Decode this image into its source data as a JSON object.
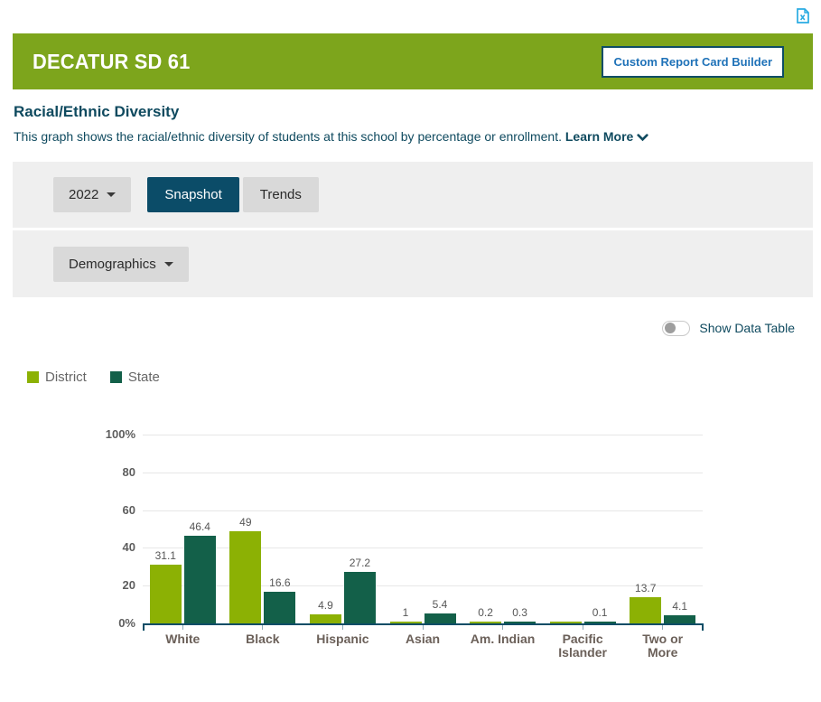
{
  "topbar": {
    "export_icon": "excel-file"
  },
  "header": {
    "title": "DECATUR SD 61",
    "builder_button": "Custom Report Card Builder"
  },
  "section": {
    "title": "Racial/Ethnic Diversity",
    "description": "This graph shows the racial/ethnic diversity of students at this school by percentage or enrollment.",
    "learn_more": "Learn More"
  },
  "controls": {
    "year_selected": "2022",
    "tabs": [
      {
        "label": "Snapshot",
        "active": true
      },
      {
        "label": "Trends",
        "active": false
      }
    ],
    "category_dropdown": "Demographics",
    "show_data_table_label": "Show Data Table",
    "show_data_table_enabled": false
  },
  "colors": {
    "banner_green": "#7DA51C",
    "navy": "#0D4D66",
    "link_blue": "#1F72B8",
    "excel_cyan": "#29ABE2",
    "row_gray": "#EFEFEF",
    "button_gray": "#D9D9D9"
  },
  "chart_data": {
    "type": "bar",
    "title": "",
    "xlabel": "",
    "ylabel": "",
    "categories": [
      "White",
      "Black",
      "Hispanic",
      "Asian",
      "Am. Indian",
      "Pacific Islander",
      "Two or More"
    ],
    "category_lines": [
      [
        "White"
      ],
      [
        "Black"
      ],
      [
        "Hispanic"
      ],
      [
        "Asian"
      ],
      [
        "Am. Indian"
      ],
      [
        "Pacific",
        "Islander"
      ],
      [
        "Two or",
        "More"
      ]
    ],
    "series": [
      {
        "name": "District",
        "color": "#8CB104",
        "values": [
          31.1,
          49,
          4.9,
          1,
          0.2,
          0.1,
          13.7
        ],
        "labels": [
          "31.1",
          "49",
          "4.9",
          "1",
          "0.2",
          "",
          "13.7"
        ]
      },
      {
        "name": "State",
        "color": "#136049",
        "values": [
          46.4,
          16.6,
          27.2,
          5.4,
          0.3,
          0.1,
          4.1
        ],
        "labels": [
          "46.4",
          "16.6",
          "27.2",
          "5.4",
          "0.3",
          "0.1",
          "4.1"
        ]
      }
    ],
    "ylim": [
      0,
      100
    ],
    "yticks": [
      {
        "value": 100,
        "label": "100%"
      },
      {
        "value": 80,
        "label": "80"
      },
      {
        "value": 60,
        "label": "60"
      },
      {
        "value": 40,
        "label": "40"
      },
      {
        "value": 20,
        "label": "20"
      },
      {
        "value": 0,
        "label": "0%"
      }
    ],
    "grid": true,
    "grid_color": "#E7E7E7",
    "axis_color": "#0D4D66",
    "cat_tick_color": "#8FA9B6",
    "legend_position": "top-left"
  }
}
